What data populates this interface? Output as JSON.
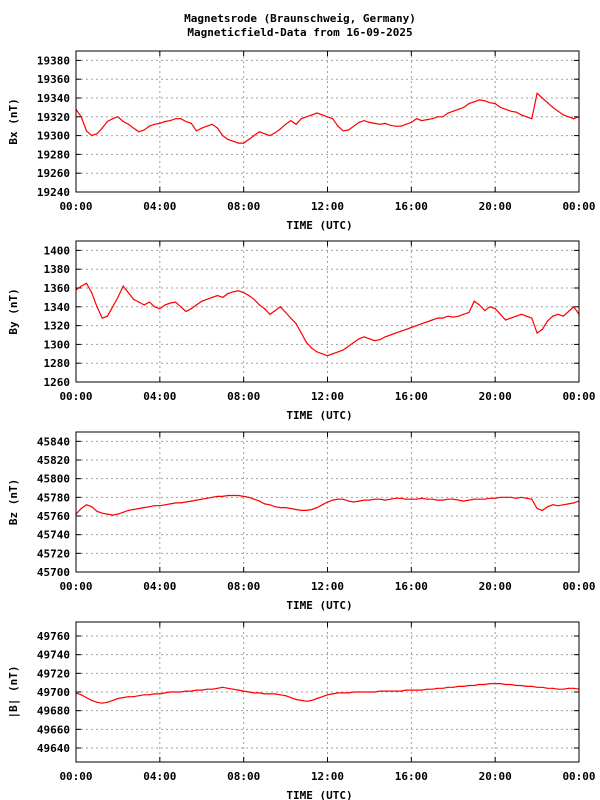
{
  "title_lines": [
    "Magnetsrode (Braunschweig, Germany)",
    "Magneticfield-Data from 16-09-2025"
  ],
  "colors": {
    "trace": "#ff0000",
    "grid": "#a0a0a0",
    "axis": "#000000",
    "background": "#ffffff"
  },
  "chart_data": [
    {
      "type": "line",
      "title": "",
      "xlabel": "TIME (UTC)",
      "ylabel": "Bx (nT)",
      "xlim": [
        0,
        24
      ],
      "ylim": [
        19240,
        19390
      ],
      "xticks": [
        "00:00",
        "04:00",
        "08:00",
        "12:00",
        "16:00",
        "20:00",
        "00:00"
      ],
      "yticks": [
        19240,
        19260,
        19280,
        19300,
        19320,
        19340,
        19360,
        19380
      ],
      "grid": true,
      "series": [
        {
          "color": "#ff0000",
          "x": [
            0,
            0.25,
            0.5,
            0.75,
            1,
            1.25,
            1.5,
            1.75,
            2,
            2.25,
            2.5,
            2.75,
            3,
            3.25,
            3.5,
            3.75,
            4,
            4.25,
            4.5,
            4.75,
            5,
            5.25,
            5.5,
            5.75,
            6,
            6.25,
            6.5,
            6.75,
            7,
            7.25,
            7.5,
            7.75,
            8,
            8.25,
            8.5,
            8.75,
            9,
            9.25,
            9.5,
            9.75,
            10,
            10.25,
            10.5,
            10.75,
            11,
            11.25,
            11.5,
            11.75,
            12,
            12.25,
            12.5,
            12.75,
            13,
            13.25,
            13.5,
            13.75,
            14,
            14.25,
            14.5,
            14.75,
            15,
            15.25,
            15.5,
            15.75,
            16,
            16.25,
            16.5,
            16.75,
            17,
            17.25,
            17.5,
            17.75,
            18,
            18.25,
            18.5,
            18.75,
            19,
            19.25,
            19.5,
            19.75,
            20,
            20.25,
            20.5,
            20.75,
            21,
            21.25,
            21.5,
            21.75,
            22,
            22.25,
            22.5,
            22.75,
            23,
            23.25,
            23.5,
            23.75,
            24
          ],
          "y": [
            19328,
            19320,
            19305,
            19300,
            19302,
            19308,
            19315,
            19318,
            19320,
            19315,
            19312,
            19308,
            19304,
            19306,
            19310,
            19312,
            19313,
            19315,
            19316,
            19318,
            19318,
            19315,
            19313,
            19305,
            19308,
            19310,
            19312,
            19308,
            19300,
            19296,
            19294,
            19292,
            19292,
            19296,
            19300,
            19304,
            19302,
            19300,
            19303,
            19307,
            19312,
            19316,
            19312,
            19318,
            19320,
            19322,
            19324,
            19322,
            19320,
            19318,
            19310,
            19305,
            19306,
            19310,
            19314,
            19316,
            19314,
            19313,
            19312,
            19313,
            19311,
            19310,
            19310,
            19312,
            19314,
            19318,
            19316,
            19317,
            19318,
            19320,
            19320,
            19324,
            19326,
            19328,
            19330,
            19334,
            19336,
            19338,
            19337,
            19335,
            19334,
            19330,
            19328,
            19326,
            19325,
            19322,
            19320,
            19318,
            19345,
            19340,
            19335,
            19330,
            19326,
            19322,
            19320,
            19318,
            19320
          ]
        }
      ]
    },
    {
      "type": "line",
      "title": "",
      "xlabel": "TIME (UTC)",
      "ylabel": "By (nT)",
      "xlim": [
        0,
        24
      ],
      "ylim": [
        1260,
        1410
      ],
      "xticks": [
        "00:00",
        "04:00",
        "08:00",
        "12:00",
        "16:00",
        "20:00",
        "00:00"
      ],
      "yticks": [
        1260,
        1280,
        1300,
        1320,
        1340,
        1360,
        1380,
        1400
      ],
      "grid": true,
      "series": [
        {
          "color": "#ff0000",
          "x": [
            0,
            0.25,
            0.5,
            0.75,
            1,
            1.25,
            1.5,
            1.75,
            2,
            2.25,
            2.5,
            2.75,
            3,
            3.25,
            3.5,
            3.75,
            4,
            4.25,
            4.5,
            4.75,
            5,
            5.25,
            5.5,
            5.75,
            6,
            6.25,
            6.5,
            6.75,
            7,
            7.25,
            7.5,
            7.75,
            8,
            8.25,
            8.5,
            8.75,
            9,
            9.25,
            9.5,
            9.75,
            10,
            10.25,
            10.5,
            10.75,
            11,
            11.25,
            11.5,
            11.75,
            12,
            12.25,
            12.5,
            12.75,
            13,
            13.25,
            13.5,
            13.75,
            14,
            14.25,
            14.5,
            14.75,
            15,
            15.25,
            15.5,
            15.75,
            16,
            16.25,
            16.5,
            16.75,
            17,
            17.25,
            17.5,
            17.75,
            18,
            18.25,
            18.5,
            18.75,
            19,
            19.25,
            19.5,
            19.75,
            20,
            20.25,
            20.5,
            20.75,
            21,
            21.25,
            21.5,
            21.75,
            22,
            22.25,
            22.5,
            22.75,
            23,
            23.25,
            23.5,
            23.75,
            24
          ],
          "y": [
            1358,
            1362,
            1365,
            1355,
            1340,
            1328,
            1330,
            1340,
            1350,
            1362,
            1355,
            1348,
            1345,
            1342,
            1345,
            1340,
            1338,
            1342,
            1344,
            1345,
            1340,
            1335,
            1338,
            1342,
            1346,
            1348,
            1350,
            1352,
            1350,
            1354,
            1356,
            1357,
            1355,
            1352,
            1348,
            1342,
            1338,
            1332,
            1336,
            1340,
            1334,
            1328,
            1322,
            1312,
            1302,
            1296,
            1292,
            1290,
            1288,
            1290,
            1292,
            1294,
            1298,
            1302,
            1306,
            1308,
            1306,
            1304,
            1305,
            1308,
            1310,
            1312,
            1314,
            1316,
            1318,
            1320,
            1322,
            1324,
            1326,
            1328,
            1328,
            1330,
            1329,
            1330,
            1332,
            1334,
            1346,
            1342,
            1336,
            1340,
            1338,
            1332,
            1326,
            1328,
            1330,
            1332,
            1330,
            1328,
            1312,
            1316,
            1325,
            1330,
            1332,
            1330,
            1335,
            1340,
            1332
          ]
        }
      ]
    },
    {
      "type": "line",
      "title": "",
      "xlabel": "TIME (UTC)",
      "ylabel": "Bz (nT)",
      "xlim": [
        0,
        24
      ],
      "ylim": [
        45700,
        45850
      ],
      "xticks": [
        "00:00",
        "04:00",
        "08:00",
        "12:00",
        "16:00",
        "20:00",
        "00:00"
      ],
      "yticks": [
        45700,
        45720,
        45740,
        45760,
        45780,
        45800,
        45820,
        45840
      ],
      "grid": true,
      "series": [
        {
          "color": "#ff0000",
          "x": [
            0,
            0.25,
            0.5,
            0.75,
            1,
            1.25,
            1.5,
            1.75,
            2,
            2.25,
            2.5,
            2.75,
            3,
            3.25,
            3.5,
            3.75,
            4,
            4.25,
            4.5,
            4.75,
            5,
            5.25,
            5.5,
            5.75,
            6,
            6.25,
            6.5,
            6.75,
            7,
            7.25,
            7.5,
            7.75,
            8,
            8.25,
            8.5,
            8.75,
            9,
            9.25,
            9.5,
            9.75,
            10,
            10.25,
            10.5,
            10.75,
            11,
            11.25,
            11.5,
            11.75,
            12,
            12.25,
            12.5,
            12.75,
            13,
            13.25,
            13.5,
            13.75,
            14,
            14.25,
            14.5,
            14.75,
            15,
            15.25,
            15.5,
            15.75,
            16,
            16.25,
            16.5,
            16.75,
            17,
            17.25,
            17.5,
            17.75,
            18,
            18.25,
            18.5,
            18.75,
            19,
            19.25,
            19.5,
            19.75,
            20,
            20.25,
            20.5,
            20.75,
            21,
            21.25,
            21.5,
            21.75,
            22,
            22.25,
            22.5,
            22.75,
            23,
            23.25,
            23.5,
            23.75,
            24
          ],
          "y": [
            45762,
            45768,
            45772,
            45770,
            45765,
            45763,
            45762,
            45761,
            45762,
            45764,
            45766,
            45767,
            45768,
            45769,
            45770,
            45771,
            45771,
            45772,
            45773,
            45774,
            45774,
            45775,
            45776,
            45777,
            45778,
            45779,
            45780,
            45781,
            45781,
            45782,
            45782,
            45782,
            45781,
            45780,
            45778,
            45776,
            45773,
            45772,
            45770,
            45769,
            45769,
            45768,
            45767,
            45766,
            45766,
            45767,
            45769,
            45772,
            45775,
            45777,
            45778,
            45778,
            45776,
            45775,
            45776,
            45777,
            45777,
            45778,
            45778,
            45777,
            45778,
            45779,
            45779,
            45778,
            45778,
            45778,
            45779,
            45778,
            45778,
            45777,
            45777,
            45778,
            45778,
            45777,
            45776,
            45777,
            45778,
            45778,
            45778,
            45779,
            45779,
            45780,
            45780,
            45780,
            45779,
            45780,
            45779,
            45778,
            45768,
            45766,
            45770,
            45772,
            45771,
            45772,
            45773,
            45774,
            45776
          ]
        }
      ]
    },
    {
      "type": "line",
      "title": "",
      "xlabel": "TIME (UTC)",
      "ylabel": "|B| (nT)",
      "xlim": [
        0,
        24
      ],
      "ylim": [
        49625,
        49775
      ],
      "xticks": [
        "00:00",
        "04:00",
        "08:00",
        "12:00",
        "16:00",
        "20:00",
        "00:00"
      ],
      "yticks": [
        49640,
        49660,
        49680,
        49700,
        49720,
        49740,
        49760
      ],
      "grid": true,
      "series": [
        {
          "color": "#ff0000",
          "x": [
            0,
            0.25,
            0.5,
            0.75,
            1,
            1.25,
            1.5,
            1.75,
            2,
            2.25,
            2.5,
            2.75,
            3,
            3.25,
            3.5,
            3.75,
            4,
            4.25,
            4.5,
            4.75,
            5,
            5.25,
            5.5,
            5.75,
            6,
            6.25,
            6.5,
            6.75,
            7,
            7.25,
            7.5,
            7.75,
            8,
            8.25,
            8.5,
            8.75,
            9,
            9.25,
            9.5,
            9.75,
            10,
            10.25,
            10.5,
            10.75,
            11,
            11.25,
            11.5,
            11.75,
            12,
            12.25,
            12.5,
            12.75,
            13,
            13.25,
            13.5,
            13.75,
            14,
            14.25,
            14.5,
            14.75,
            15,
            15.25,
            15.5,
            15.75,
            16,
            16.25,
            16.5,
            16.75,
            17,
            17.25,
            17.5,
            17.75,
            18,
            18.25,
            18.5,
            18.75,
            19,
            19.25,
            19.5,
            19.75,
            20,
            20.25,
            20.5,
            20.75,
            21,
            21.25,
            21.5,
            21.75,
            22,
            22.25,
            22.5,
            22.75,
            23,
            23.25,
            23.5,
            23.75,
            24
          ],
          "y": [
            49699,
            49697,
            49694,
            49691,
            49689,
            49688,
            49689,
            49691,
            49693,
            49694,
            49695,
            49695,
            49696,
            49697,
            49697,
            49698,
            49698,
            49699,
            49700,
            49700,
            49700,
            49701,
            49701,
            49702,
            49702,
            49703,
            49703,
            49704,
            49705,
            49704,
            49703,
            49702,
            49701,
            49700,
            49699,
            49699,
            49698,
            49698,
            49698,
            49697,
            49696,
            49694,
            49692,
            49691,
            49690,
            49691,
            49693,
            49695,
            49697,
            49698,
            49699,
            49699,
            49699,
            49700,
            49700,
            49700,
            49700,
            49700,
            49701,
            49701,
            49701,
            49701,
            49701,
            49702,
            49702,
            49702,
            49702,
            49703,
            49703,
            49704,
            49704,
            49705,
            49705,
            49706,
            49706,
            49707,
            49707,
            49708,
            49708,
            49709,
            49709,
            49709,
            49708,
            49708,
            49707,
            49707,
            49706,
            49706,
            49705,
            49705,
            49704,
            49704,
            49703,
            49703,
            49704,
            49704,
            49703
          ]
        }
      ]
    }
  ]
}
